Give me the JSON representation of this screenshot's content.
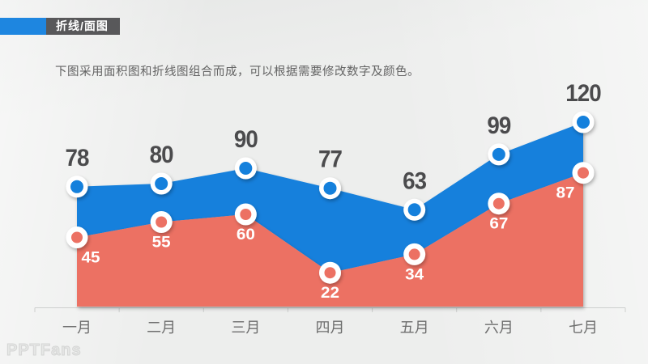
{
  "header": {
    "tag_label": "折线/面图",
    "tag_bg": "#58585A",
    "accent_color": "#1E86E0",
    "subtitle": "下图采用面积图和折线图组合而成，可以根据需要修改数字及颜色。",
    "subtitle_color": "#646464"
  },
  "watermark": "PPTFans",
  "chart_data": {
    "type": "area",
    "title": "",
    "xlabel": "",
    "ylabel": "",
    "categories": [
      "一月",
      "二月",
      "三月",
      "四月",
      "五月",
      "六月",
      "七月"
    ],
    "series": [
      {
        "name": "series-blue",
        "values": [
          78,
          80,
          90,
          77,
          63,
          99,
          120
        ],
        "color": "#1480DC",
        "label_color": "#4B4B4D",
        "label_position": "above"
      },
      {
        "name": "series-red",
        "values": [
          45,
          55,
          60,
          22,
          34,
          67,
          87
        ],
        "color": "#EC7163",
        "label_color": "#FFFFFF",
        "label_position": "below"
      }
    ],
    "ylim": [
      0,
      178
    ],
    "grid": false,
    "legend": "none",
    "axis_color": "#CDCFCE",
    "tick_label_color": "#6E6E6E",
    "marker_ring_color": "#FFFFFF"
  }
}
